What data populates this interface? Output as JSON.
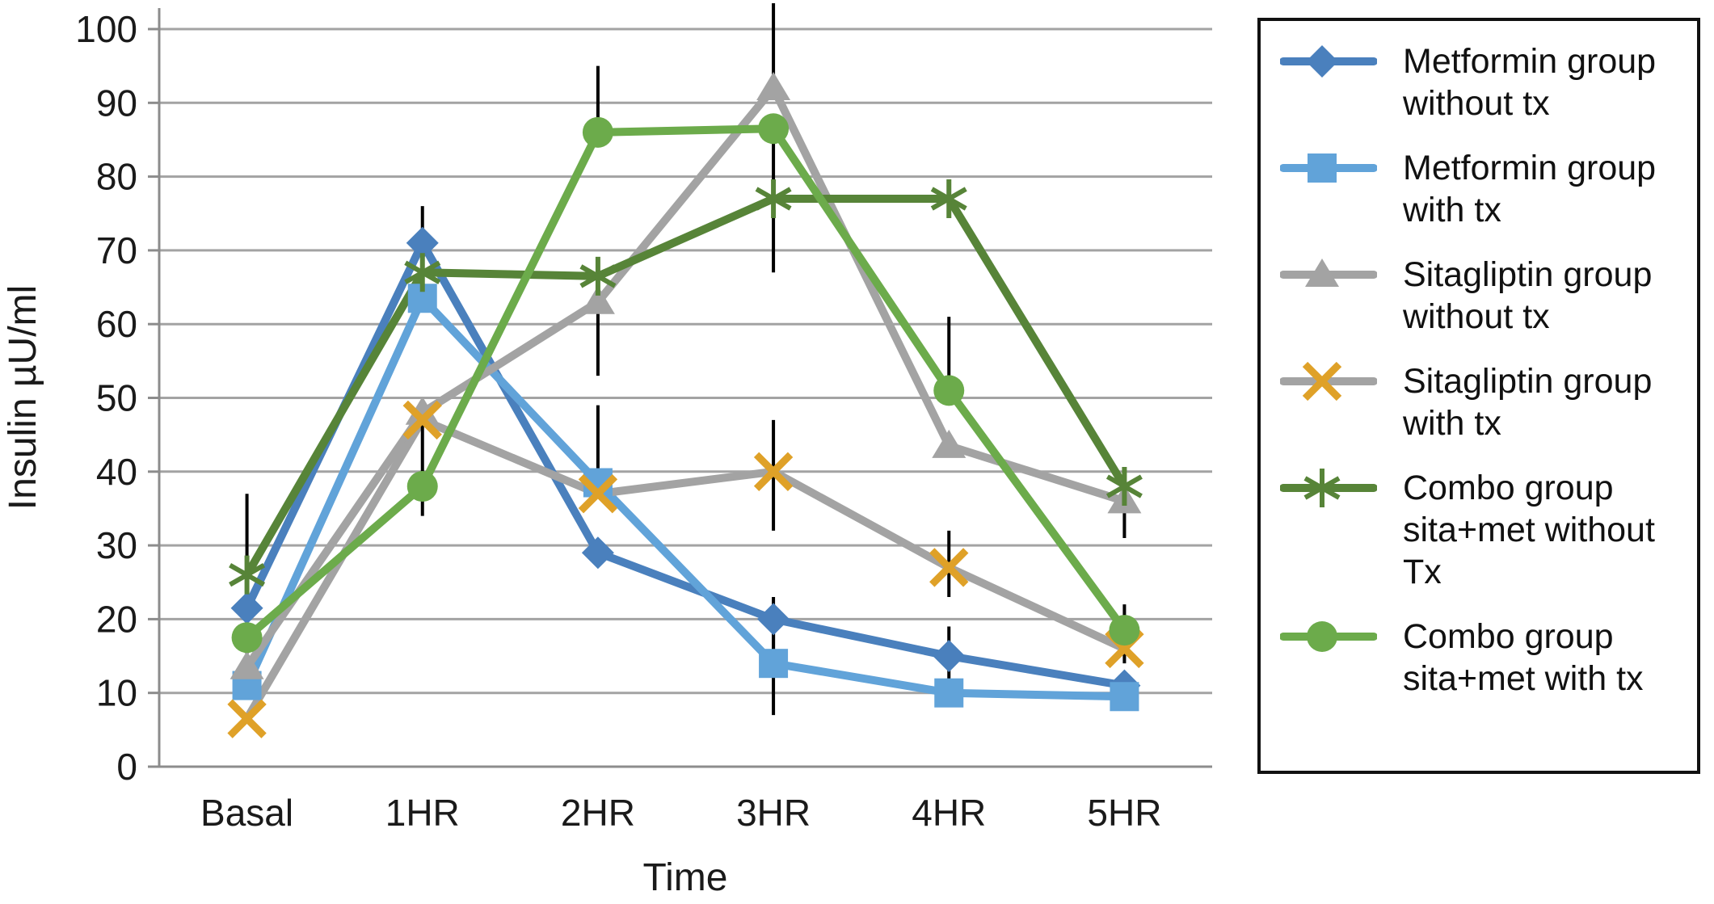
{
  "chart_data": {
    "type": "line",
    "title": "",
    "xlabel": "Time",
    "ylabel": "Insulin µU/ml",
    "categories": [
      "Basal",
      "1HR",
      "2HR",
      "3HR",
      "4HR",
      "5HR"
    ],
    "ylim": [
      0,
      100
    ],
    "ytick_step": 10,
    "yticks": [
      0,
      10,
      20,
      30,
      40,
      50,
      60,
      70,
      80,
      90,
      100
    ],
    "grid": true,
    "legend_position": "right",
    "series": [
      {
        "name": "Metformin group without tx",
        "legend_lines": [
          "Metformin group",
          "without tx"
        ],
        "marker": "diamond",
        "color": "#4a80bd",
        "marker_color": "#4a80bd",
        "values": [
          21.5,
          71,
          29,
          20,
          15,
          11
        ]
      },
      {
        "name": "Metformin group with tx",
        "legend_lines": [
          "Metformin group",
          "with tx"
        ],
        "marker": "square",
        "color": "#61a3d9",
        "marker_color": "#61a3d9",
        "values": [
          11,
          63.5,
          38.5,
          14,
          10,
          9.5
        ]
      },
      {
        "name": "Sitagliptin group without tx",
        "legend_lines": [
          "Sitagliptin group",
          "without tx"
        ],
        "marker": "triangle",
        "color": "#a3a3a3",
        "marker_color": "#a3a3a3",
        "values": [
          13.5,
          48,
          63,
          92,
          43.5,
          36
        ]
      },
      {
        "name": "Sitagliptin group with tx",
        "legend_lines": [
          "Sitagliptin group",
          "with tx"
        ],
        "marker": "x",
        "color": "#a3a3a3",
        "marker_color": "#dfa128",
        "values": [
          6.5,
          47,
          37,
          40,
          27,
          16
        ]
      },
      {
        "name": "Combo group sita+met without Tx",
        "legend_lines": [
          "Combo group",
          "sita+met without",
          "Tx"
        ],
        "marker": "asterisk",
        "color": "#578438",
        "marker_color": "#578438",
        "values": [
          26,
          67,
          66.5,
          77,
          77,
          38
        ]
      },
      {
        "name": "Combo group sita+met with tx",
        "legend_lines": [
          "Combo group",
          "sita+met with tx"
        ],
        "marker": "circle",
        "color": "#6cab4b",
        "marker_color": "#6cab4b",
        "values": [
          17.5,
          38,
          86,
          86.5,
          51,
          18.5
        ]
      }
    ],
    "error_bars": [
      {
        "series": 2,
        "category": 0,
        "lo": 13,
        "hi": 21.5
      },
      {
        "series": 4,
        "category": 0,
        "lo": 26,
        "hi": 37
      },
      {
        "series": 0,
        "category": 1,
        "lo": 65,
        "hi": 76
      },
      {
        "series": 3,
        "category": 1,
        "lo": 34,
        "hi": 47
      },
      {
        "series": 1,
        "category": 2,
        "lo": 38.5,
        "hi": 49
      },
      {
        "series": 2,
        "category": 2,
        "lo": 53,
        "hi": 63
      },
      {
        "series": 5,
        "category": 2,
        "lo": 86,
        "hi": 95
      },
      {
        "series": 0,
        "category": 3,
        "lo": 14,
        "hi": 23
      },
      {
        "series": 1,
        "category": 3,
        "lo": 7,
        "hi": 18
      },
      {
        "series": 2,
        "category": 3,
        "lo": 92,
        "hi": 103.5
      },
      {
        "series": 3,
        "category": 3,
        "lo": 32,
        "hi": 47
      },
      {
        "series": 4,
        "category": 3,
        "lo": 67,
        "hi": 87
      },
      {
        "series": 0,
        "category": 4,
        "lo": 10,
        "hi": 19
      },
      {
        "series": 3,
        "category": 4,
        "lo": 23,
        "hi": 32
      },
      {
        "series": 5,
        "category": 4,
        "lo": 51,
        "hi": 61
      },
      {
        "series": 2,
        "category": 5,
        "lo": 31,
        "hi": 39
      },
      {
        "series": 5,
        "category": 5,
        "lo": 14,
        "hi": 22
      }
    ]
  },
  "style": {
    "gridline_color": "#a3a3a3",
    "axis_color": "#8c8c8c",
    "error_bar_color": "#000000",
    "text_color": "#1a1a1a",
    "legend_border_color": "#111111"
  }
}
